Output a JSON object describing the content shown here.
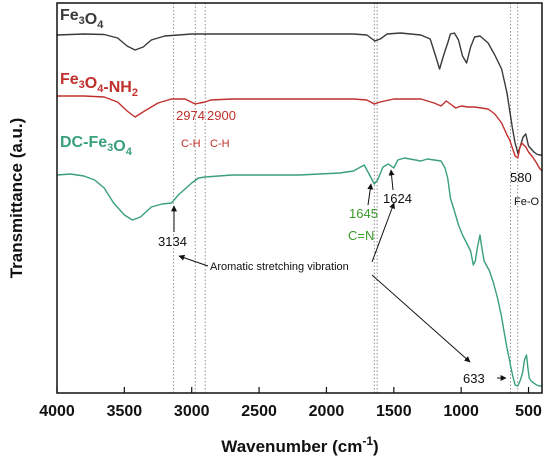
{
  "chart_data": {
    "type": "line",
    "xlabel": "Wavenumber (cm",
    "xlabel_sup": "-1",
    "xlabel_tail": ")",
    "ylabel": "Transmittance (a.u.)",
    "xlim": [
      4000,
      400
    ],
    "x_reversed": true,
    "x_ticks": [
      4000,
      3500,
      3000,
      2500,
      2000,
      1500,
      1000,
      500
    ],
    "grid": false,
    "legend": "inline labels",
    "series": [
      {
        "name": "Fe3O4",
        "label_parts": [
          [
            "Fe",
            ""
          ],
          [
            "3",
            "sub"
          ],
          [
            "O",
            ""
          ],
          [
            "4",
            "sub"
          ]
        ],
        "color": "#3a3a3a",
        "points": [
          [
            4000,
            32
          ],
          [
            3800,
            31
          ],
          [
            3650,
            31.5
          ],
          [
            3550,
            35
          ],
          [
            3480,
            43
          ],
          [
            3420,
            47
          ],
          [
            3360,
            44
          ],
          [
            3300,
            37
          ],
          [
            3200,
            33
          ],
          [
            3000,
            31
          ],
          [
            2700,
            31
          ],
          [
            2300,
            31
          ],
          [
            2000,
            31
          ],
          [
            1800,
            31
          ],
          [
            1700,
            32
          ],
          [
            1640,
            38
          ],
          [
            1600,
            36
          ],
          [
            1550,
            31
          ],
          [
            1450,
            30
          ],
          [
            1300,
            32
          ],
          [
            1230,
            36
          ],
          [
            1190,
            53
          ],
          [
            1160,
            66
          ],
          [
            1130,
            52
          ],
          [
            1100,
            40
          ],
          [
            1080,
            31
          ],
          [
            1050,
            30
          ],
          [
            1020,
            37
          ],
          [
            990,
            53
          ],
          [
            960,
            60
          ],
          [
            930,
            44
          ],
          [
            900,
            34
          ],
          [
            860,
            33
          ],
          [
            800,
            40
          ],
          [
            750,
            52
          ],
          [
            700,
            66
          ],
          [
            660,
            90
          ],
          [
            620,
            125
          ],
          [
            600,
            140
          ],
          [
            580,
            150
          ],
          [
            560,
            143
          ],
          [
            540,
            134
          ],
          [
            520,
            131
          ],
          [
            500,
            143
          ],
          [
            480,
            146
          ],
          [
            460,
            149
          ],
          [
            440,
            151
          ],
          [
            420,
            152
          ],
          [
            400,
            152
          ]
        ]
      },
      {
        "name": "Fe3O4-NH2",
        "label_parts": [
          [
            "Fe",
            ""
          ],
          [
            "3",
            "sub"
          ],
          [
            "O",
            ""
          ],
          [
            "4",
            "sub"
          ],
          [
            "-NH",
            ""
          ],
          [
            "2",
            "sub"
          ]
        ],
        "color": "#c0302c",
        "points": [
          [
            4000,
            93
          ],
          [
            3800,
            93
          ],
          [
            3650,
            94
          ],
          [
            3550,
            99
          ],
          [
            3480,
            108
          ],
          [
            3420,
            114
          ],
          [
            3350,
            108
          ],
          [
            3250,
            100
          ],
          [
            3150,
            96
          ],
          [
            3050,
            96
          ],
          [
            2974,
            101
          ],
          [
            2940,
            100
          ],
          [
            2900,
            99
          ],
          [
            2860,
            97
          ],
          [
            2700,
            96
          ],
          [
            2400,
            96
          ],
          [
            2000,
            96
          ],
          [
            1800,
            96
          ],
          [
            1700,
            97
          ],
          [
            1645,
            101
          ],
          [
            1600,
            99
          ],
          [
            1500,
            96
          ],
          [
            1300,
            96
          ],
          [
            1200,
            100
          ],
          [
            1150,
            103
          ],
          [
            1110,
            98
          ],
          [
            1070,
            102
          ],
          [
            1040,
            105
          ],
          [
            1000,
            103
          ],
          [
            950,
            104
          ],
          [
            900,
            104
          ],
          [
            850,
            105
          ],
          [
            800,
            106
          ],
          [
            750,
            111
          ],
          [
            700,
            120
          ],
          [
            660,
            132
          ],
          [
            640,
            137
          ],
          [
            620,
            145
          ],
          [
            600,
            153
          ],
          [
            580,
            155
          ],
          [
            565,
            145
          ],
          [
            550,
            140
          ],
          [
            520,
            144
          ],
          [
            500,
            149
          ],
          [
            470,
            154
          ],
          [
            440,
            160
          ],
          [
            420,
            165
          ],
          [
            400,
            168
          ]
        ]
      },
      {
        "name": "DC-Fe3O4",
        "label_parts": [
          [
            "DC-Fe",
            ""
          ],
          [
            "3",
            "sub"
          ],
          [
            "O",
            ""
          ],
          [
            "4",
            "sub"
          ]
        ],
        "color": "#3aa07a",
        "points": [
          [
            4000,
            172
          ],
          [
            3900,
            171
          ],
          [
            3800,
            173
          ],
          [
            3720,
            177
          ],
          [
            3650,
            185
          ],
          [
            3580,
            200
          ],
          [
            3500,
            212
          ],
          [
            3440,
            217
          ],
          [
            3380,
            214
          ],
          [
            3300,
            204
          ],
          [
            3220,
            201
          ],
          [
            3150,
            200
          ],
          [
            3100,
            192
          ],
          [
            3000,
            180
          ],
          [
            2950,
            175
          ],
          [
            2900,
            174
          ],
          [
            2800,
            173
          ],
          [
            2700,
            172
          ],
          [
            2500,
            172
          ],
          [
            2200,
            172
          ],
          [
            1900,
            170
          ],
          [
            1800,
            168
          ],
          [
            1720,
            162
          ],
          [
            1680,
            172
          ],
          [
            1645,
            181
          ],
          [
            1620,
            177
          ],
          [
            1580,
            164
          ],
          [
            1540,
            161
          ],
          [
            1500,
            165
          ],
          [
            1470,
            157
          ],
          [
            1420,
            155
          ],
          [
            1380,
            156
          ],
          [
            1340,
            157
          ],
          [
            1300,
            158
          ],
          [
            1250,
            156
          ],
          [
            1200,
            157
          ],
          [
            1150,
            158
          ],
          [
            1120,
            165
          ],
          [
            1100,
            175
          ],
          [
            1080,
            195
          ],
          [
            1050,
            208
          ],
          [
            1020,
            222
          ],
          [
            990,
            232
          ],
          [
            960,
            240
          ],
          [
            930,
            248
          ],
          [
            910,
            262
          ],
          [
            895,
            258
          ],
          [
            880,
            245
          ],
          [
            860,
            232
          ],
          [
            850,
            242
          ],
          [
            830,
            258
          ],
          [
            810,
            263
          ],
          [
            790,
            268
          ],
          [
            760,
            280
          ],
          [
            730,
            295
          ],
          [
            700,
            314
          ],
          [
            680,
            330
          ],
          [
            660,
            345
          ],
          [
            640,
            358
          ],
          [
            633,
            363
          ],
          [
            615,
            374
          ],
          [
            600,
            382
          ],
          [
            580,
            383
          ],
          [
            560,
            377
          ],
          [
            545,
            370
          ],
          [
            530,
            357
          ],
          [
            515,
            352
          ],
          [
            505,
            365
          ],
          [
            495,
            375
          ],
          [
            480,
            378
          ],
          [
            460,
            380
          ],
          [
            440,
            382
          ],
          [
            420,
            383
          ],
          [
            400,
            383
          ]
        ]
      }
    ],
    "annotations": {
      "a2974": {
        "value": "2974",
        "group": "C-H"
      },
      "a2900": {
        "value": "2900",
        "group": "C-H"
      },
      "a580": {
        "value": "580",
        "group": "Fe-O"
      },
      "a3134": {
        "value": "3134"
      },
      "a1645": {
        "value": "1645",
        "group": "C=N"
      },
      "a1624": {
        "value": "1624"
      },
      "a633": {
        "value": "633"
      },
      "aromatic": "Aromatic stretching vibration"
    },
    "reference_lines": [
      3134,
      2974,
      2900,
      1645,
      1624,
      633,
      580
    ]
  }
}
